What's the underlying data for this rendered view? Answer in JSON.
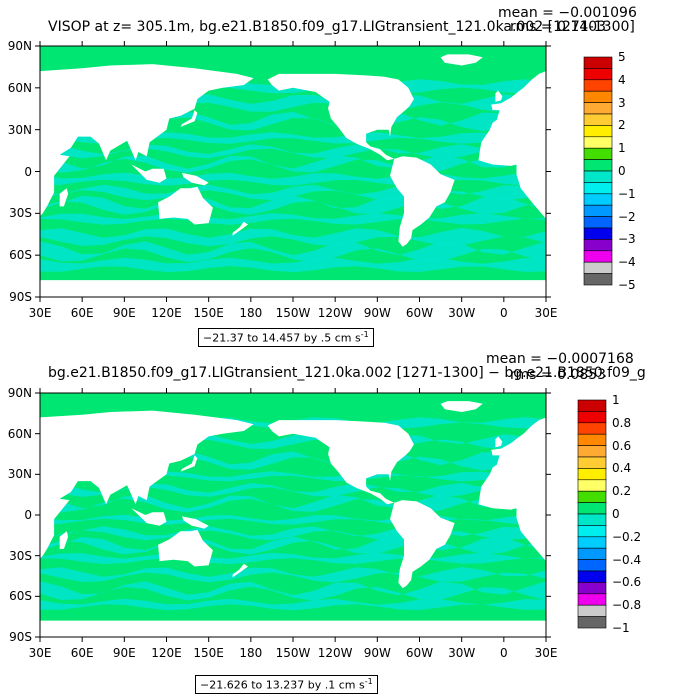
{
  "panels": [
    {
      "title": "VISOP at z= 305.1m, bg.e21.B1850.f09_g17.LIGtransient_121.0ka.002 [1271-1300]",
      "mean": "mean = −0.001096",
      "rms": "rms = 0.1403",
      "range_text": "−21.37 to 14.457 by .5 cm s",
      "range_unit_sup": "-1",
      "lat_labels": [
        "90N",
        "60N",
        "30N",
        "0",
        "30S",
        "60S",
        "90S"
      ],
      "lon_labels": [
        "30E",
        "60E",
        "90E",
        "120E",
        "150E",
        "180",
        "150W",
        "120W",
        "90W",
        "60W",
        "30W",
        "0",
        "30E"
      ],
      "colorbar_labels": [
        "5",
        "4",
        "3",
        "2",
        "1",
        "0",
        "−1",
        "−2",
        "−3",
        "−4",
        "−5"
      ]
    },
    {
      "title": "bg.e21.B1850.f09_g17.LIGtransient_121.0ka.002 [1271-1300] − bg.e21.B1850.f09_g",
      "mean": "mean = −0.0007168",
      "rms": "rms = 0.0853",
      "range_text": "−21.626 to 13.237 by .1 cm s",
      "range_unit_sup": "-1",
      "lat_labels": [
        "90N",
        "60N",
        "30N",
        "0",
        "30S",
        "60S",
        "90S"
      ],
      "lon_labels": [
        "30E",
        "60E",
        "90E",
        "120E",
        "150E",
        "180",
        "150W",
        "120W",
        "90W",
        "60W",
        "30W",
        "0",
        "30E"
      ],
      "colorbar_labels": [
        "1",
        "0.8",
        "0.6",
        "0.4",
        "0.2",
        "0",
        "−0.2",
        "−0.4",
        "−0.6",
        "−0.8",
        "−1"
      ]
    }
  ],
  "colors": {
    "ocean_near_zero": "#00e672",
    "ocean_negative": "#00e6c8",
    "land": "#ffffff",
    "missing": "#cccccc",
    "palette": [
      "#cc0000",
      "#ee0000",
      "#ff4400",
      "#ff8800",
      "#ffaa33",
      "#ffcc33",
      "#ffee00",
      "#ffff66",
      "#44dd00",
      "#00e672",
      "#00e6c8",
      "#00eeee",
      "#00ccff",
      "#0099ff",
      "#0066ff",
      "#0000ee",
      "#8800cc",
      "#ee00ee",
      "#cccccc",
      "#666666"
    ]
  }
}
